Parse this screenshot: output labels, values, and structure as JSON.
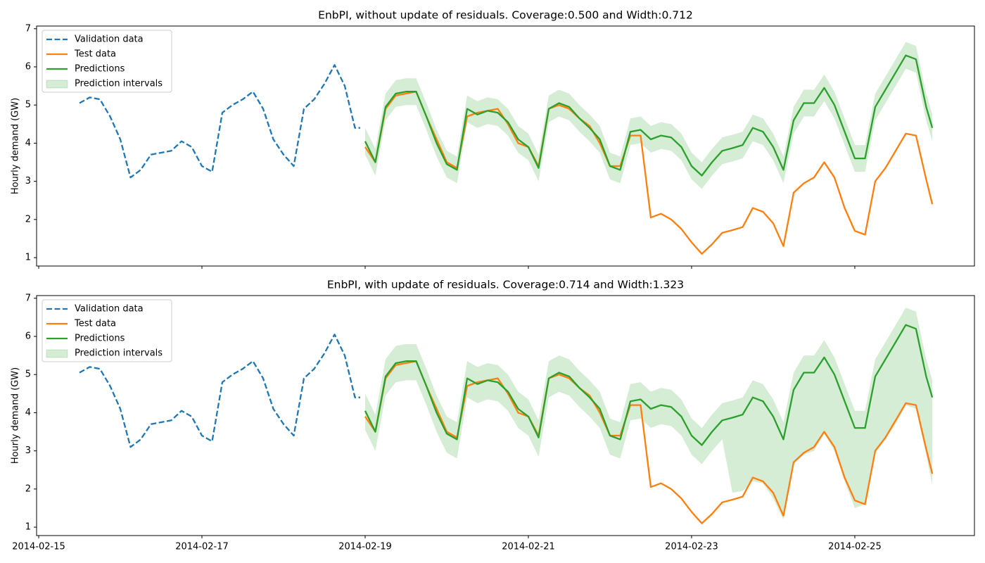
{
  "chart_data": [
    {
      "type": "line",
      "title": "EnbPI, without update of residuals. Coverage:0.500 and Width:0.712",
      "ylabel": "Hourly demand (GW)",
      "xlim": [
        -0.026,
        11.466
      ],
      "ylim": [
        0.78,
        7.07
      ],
      "yticks": [
        1,
        2,
        3,
        4,
        5,
        6,
        7
      ],
      "xticks": [
        {
          "value": 0,
          "label": "2014-02-15"
        },
        {
          "value": 2,
          "label": "2014-02-17"
        },
        {
          "value": 4,
          "label": "2014-02-19"
        },
        {
          "value": 6,
          "label": "2014-02-21"
        },
        {
          "value": 8,
          "label": "2014-02-23"
        },
        {
          "value": 10,
          "label": "2014-02-25"
        }
      ],
      "show_xtick_labels": false,
      "legend": "upper left",
      "x": [
        4,
        4.125,
        4.25,
        4.375,
        4.5,
        4.625,
        4.75,
        4.875,
        5,
        5.125,
        5.25,
        5.375,
        5.5,
        5.625,
        5.75,
        5.875,
        6,
        6.125,
        6.25,
        6.375,
        6.5,
        6.625,
        6.75,
        6.875,
        7,
        7.125,
        7.25,
        7.375,
        7.5,
        7.625,
        7.75,
        7.875,
        8,
        8.125,
        8.25,
        8.375,
        8.5,
        8.625,
        8.75,
        8.875,
        9,
        9.125,
        9.25,
        9.375,
        9.5,
        9.625,
        9.75,
        9.875,
        10,
        10.125,
        10.25,
        10.375,
        10.5,
        10.625,
        10.75,
        10.875,
        10.95
      ],
      "series": [
        {
          "name": "Validation data",
          "color": "#1f77b4",
          "dash": "dashed",
          "x": [
            0.5,
            0.625,
            0.75,
            0.875,
            1,
            1.125,
            1.25,
            1.375,
            1.5,
            1.625,
            1.75,
            1.875,
            2,
            2.125,
            2.25,
            2.375,
            2.5,
            2.625,
            2.75,
            2.875,
            3,
            3.125,
            3.25,
            3.375,
            3.5,
            3.625,
            3.75,
            3.875,
            3.94
          ],
          "values": [
            5.05,
            5.2,
            5.15,
            4.7,
            4.1,
            3.1,
            3.3,
            3.7,
            3.75,
            3.8,
            4.05,
            3.9,
            3.4,
            3.25,
            4.8,
            5.0,
            5.15,
            5.35,
            4.9,
            4.1,
            3.7,
            3.4,
            4.9,
            5.15,
            5.55,
            6.05,
            5.5,
            4.4,
            4.4
          ]
        },
        {
          "name": "Test data",
          "color": "#ff7f0e",
          "values": [
            3.9,
            3.5,
            4.9,
            5.25,
            5.3,
            5.35,
            4.7,
            4.1,
            3.5,
            3.35,
            4.7,
            4.8,
            4.85,
            4.9,
            4.5,
            4.0,
            3.9,
            3.4,
            4.9,
            5.0,
            4.9,
            4.65,
            4.45,
            4.0,
            3.4,
            3.4,
            4.2,
            4.2,
            2.05,
            2.15,
            2.0,
            1.75,
            1.4,
            1.1,
            1.35,
            1.65,
            1.72,
            1.8,
            2.3,
            2.2,
            1.9,
            1.3,
            2.7,
            2.95,
            3.1,
            3.5,
            3.1,
            2.3,
            1.7,
            1.6,
            3.0,
            3.35,
            3.8,
            4.25,
            4.2,
            3.05,
            2.4
          ]
        },
        {
          "name": "Predictions",
          "color": "#2ca02c",
          "values": [
            4.05,
            3.5,
            4.95,
            5.3,
            5.35,
            5.35,
            4.7,
            4.0,
            3.45,
            3.3,
            4.9,
            4.75,
            4.85,
            4.8,
            4.55,
            4.1,
            3.9,
            3.35,
            4.9,
            5.05,
            4.95,
            4.65,
            4.4,
            4.1,
            3.4,
            3.3,
            4.3,
            4.35,
            4.1,
            4.2,
            4.15,
            3.9,
            3.4,
            3.15,
            3.5,
            3.8,
            3.87,
            3.95,
            4.4,
            4.3,
            3.9,
            3.3,
            4.6,
            5.05,
            5.05,
            5.45,
            5.0,
            4.3,
            3.6,
            3.6,
            4.95,
            5.4,
            5.85,
            6.3,
            6.2,
            4.95,
            4.4
          ]
        },
        {
          "name": "Prediction intervals",
          "color": "#2ca02c",
          "opacity": 0.2,
          "lower": [
            3.7,
            3.15,
            4.6,
            4.95,
            5.0,
            5.0,
            4.35,
            3.65,
            3.1,
            2.95,
            4.55,
            4.4,
            4.5,
            4.45,
            4.2,
            3.75,
            3.55,
            3.0,
            4.55,
            4.7,
            4.6,
            4.3,
            4.05,
            3.75,
            3.05,
            2.95,
            3.95,
            4.0,
            3.75,
            3.85,
            3.8,
            3.55,
            3.05,
            2.8,
            3.15,
            3.45,
            3.52,
            3.6,
            4.05,
            3.95,
            3.55,
            2.95,
            4.25,
            4.7,
            4.7,
            5.1,
            4.65,
            3.95,
            3.25,
            3.25,
            4.6,
            5.05,
            5.5,
            5.95,
            5.85,
            4.6,
            4.05
          ],
          "upper": [
            4.4,
            3.85,
            5.3,
            5.65,
            5.7,
            5.7,
            5.05,
            4.35,
            3.8,
            3.65,
            5.25,
            5.1,
            5.2,
            5.15,
            4.9,
            4.45,
            4.25,
            3.7,
            5.25,
            5.4,
            5.3,
            5.0,
            4.75,
            4.45,
            3.75,
            3.65,
            4.65,
            4.7,
            4.45,
            4.55,
            4.5,
            4.25,
            3.75,
            3.5,
            3.85,
            4.15,
            4.22,
            4.3,
            4.75,
            4.65,
            4.25,
            3.65,
            4.95,
            5.4,
            5.4,
            5.8,
            5.35,
            4.65,
            3.95,
            3.95,
            5.3,
            5.75,
            6.2,
            6.65,
            6.55,
            5.3,
            4.75
          ]
        }
      ]
    },
    {
      "type": "line",
      "title": "EnbPI, with update of residuals. Coverage:0.714 and Width:1.323",
      "ylabel": "Hourly demand (GW)",
      "xlim": [
        -0.026,
        11.466
      ],
      "ylim": [
        0.78,
        7.07
      ],
      "yticks": [
        1,
        2,
        3,
        4,
        5,
        6,
        7
      ],
      "xticks": [
        {
          "value": 0,
          "label": "2014-02-15"
        },
        {
          "value": 2,
          "label": "2014-02-17"
        },
        {
          "value": 4,
          "label": "2014-02-19"
        },
        {
          "value": 6,
          "label": "2014-02-21"
        },
        {
          "value": 8,
          "label": "2014-02-23"
        },
        {
          "value": 10,
          "label": "2014-02-25"
        }
      ],
      "show_xtick_labels": true,
      "legend": "upper left",
      "x": [
        4,
        4.125,
        4.25,
        4.375,
        4.5,
        4.625,
        4.75,
        4.875,
        5,
        5.125,
        5.25,
        5.375,
        5.5,
        5.625,
        5.75,
        5.875,
        6,
        6.125,
        6.25,
        6.375,
        6.5,
        6.625,
        6.75,
        6.875,
        7,
        7.125,
        7.25,
        7.375,
        7.5,
        7.625,
        7.75,
        7.875,
        8,
        8.125,
        8.25,
        8.375,
        8.5,
        8.625,
        8.75,
        8.875,
        9,
        9.125,
        9.25,
        9.375,
        9.5,
        9.625,
        9.75,
        9.875,
        10,
        10.125,
        10.25,
        10.375,
        10.5,
        10.625,
        10.75,
        10.875,
        10.95
      ],
      "series": [
        {
          "name": "Validation data",
          "color": "#1f77b4",
          "dash": "dashed",
          "x": [
            0.5,
            0.625,
            0.75,
            0.875,
            1,
            1.125,
            1.25,
            1.375,
            1.5,
            1.625,
            1.75,
            1.875,
            2,
            2.125,
            2.25,
            2.375,
            2.5,
            2.625,
            2.75,
            2.875,
            3,
            3.125,
            3.25,
            3.375,
            3.5,
            3.625,
            3.75,
            3.875,
            3.94
          ],
          "values": [
            5.05,
            5.2,
            5.15,
            4.7,
            4.1,
            3.1,
            3.3,
            3.7,
            3.75,
            3.8,
            4.05,
            3.9,
            3.4,
            3.25,
            4.8,
            5.0,
            5.15,
            5.35,
            4.9,
            4.1,
            3.7,
            3.4,
            4.9,
            5.15,
            5.55,
            6.05,
            5.5,
            4.4,
            4.4
          ]
        },
        {
          "name": "Test data",
          "color": "#ff7f0e",
          "values": [
            3.9,
            3.5,
            4.9,
            5.25,
            5.3,
            5.35,
            4.7,
            4.1,
            3.5,
            3.35,
            4.7,
            4.8,
            4.85,
            4.9,
            4.5,
            4.0,
            3.9,
            3.4,
            4.9,
            5.0,
            4.9,
            4.65,
            4.45,
            4.0,
            3.4,
            3.4,
            4.2,
            4.2,
            2.05,
            2.15,
            2.0,
            1.75,
            1.4,
            1.1,
            1.35,
            1.65,
            1.72,
            1.8,
            2.3,
            2.2,
            1.9,
            1.3,
            2.7,
            2.95,
            3.1,
            3.5,
            3.1,
            2.3,
            1.7,
            1.6,
            3.0,
            3.35,
            3.8,
            4.25,
            4.2,
            3.05,
            2.4
          ]
        },
        {
          "name": "Predictions",
          "color": "#2ca02c",
          "values": [
            4.05,
            3.5,
            4.95,
            5.3,
            5.35,
            5.35,
            4.7,
            4.0,
            3.45,
            3.3,
            4.9,
            4.75,
            4.85,
            4.8,
            4.55,
            4.1,
            3.9,
            3.35,
            4.9,
            5.05,
            4.95,
            4.65,
            4.4,
            4.1,
            3.4,
            3.3,
            4.3,
            4.35,
            4.1,
            4.2,
            4.15,
            3.9,
            3.4,
            3.15,
            3.5,
            3.8,
            3.87,
            3.95,
            4.4,
            4.3,
            3.9,
            3.3,
            4.6,
            5.05,
            5.05,
            5.45,
            5.0,
            4.3,
            3.6,
            3.6,
            4.95,
            5.4,
            5.85,
            6.3,
            6.2,
            4.95,
            4.4
          ]
        },
        {
          "name": "Prediction intervals",
          "color": "#2ca02c",
          "opacity": 0.2,
          "lower": [
            3.55,
            3.0,
            4.45,
            4.8,
            4.85,
            4.85,
            4.2,
            3.5,
            2.95,
            2.8,
            4.4,
            4.25,
            4.35,
            4.3,
            4.05,
            3.6,
            3.4,
            2.85,
            4.4,
            4.55,
            4.45,
            4.15,
            3.9,
            3.6,
            2.9,
            2.8,
            3.8,
            3.85,
            3.6,
            3.7,
            3.65,
            3.4,
            2.9,
            2.65,
            3.0,
            3.3,
            1.9,
            1.95,
            2.2,
            2.15,
            1.75,
            1.2,
            2.65,
            2.9,
            3.0,
            3.45,
            3.0,
            2.2,
            1.5,
            1.6,
            2.95,
            3.3,
            3.7,
            4.2,
            4.1,
            2.9,
            2.1
          ],
          "upper": [
            4.5,
            3.95,
            5.4,
            5.75,
            5.8,
            5.8,
            5.15,
            4.45,
            3.9,
            3.75,
            5.35,
            5.2,
            5.3,
            5.25,
            5.0,
            4.55,
            4.35,
            3.8,
            5.35,
            5.5,
            5.4,
            5.1,
            4.85,
            4.55,
            3.85,
            3.75,
            4.75,
            4.8,
            4.55,
            4.65,
            4.6,
            4.35,
            3.85,
            3.6,
            3.95,
            4.25,
            4.32,
            4.4,
            4.85,
            4.75,
            4.35,
            3.75,
            5.05,
            5.5,
            5.5,
            5.9,
            5.45,
            4.75,
            4.05,
            4.05,
            5.4,
            5.85,
            6.3,
            6.75,
            6.65,
            5.4,
            4.85
          ]
        }
      ]
    }
  ]
}
